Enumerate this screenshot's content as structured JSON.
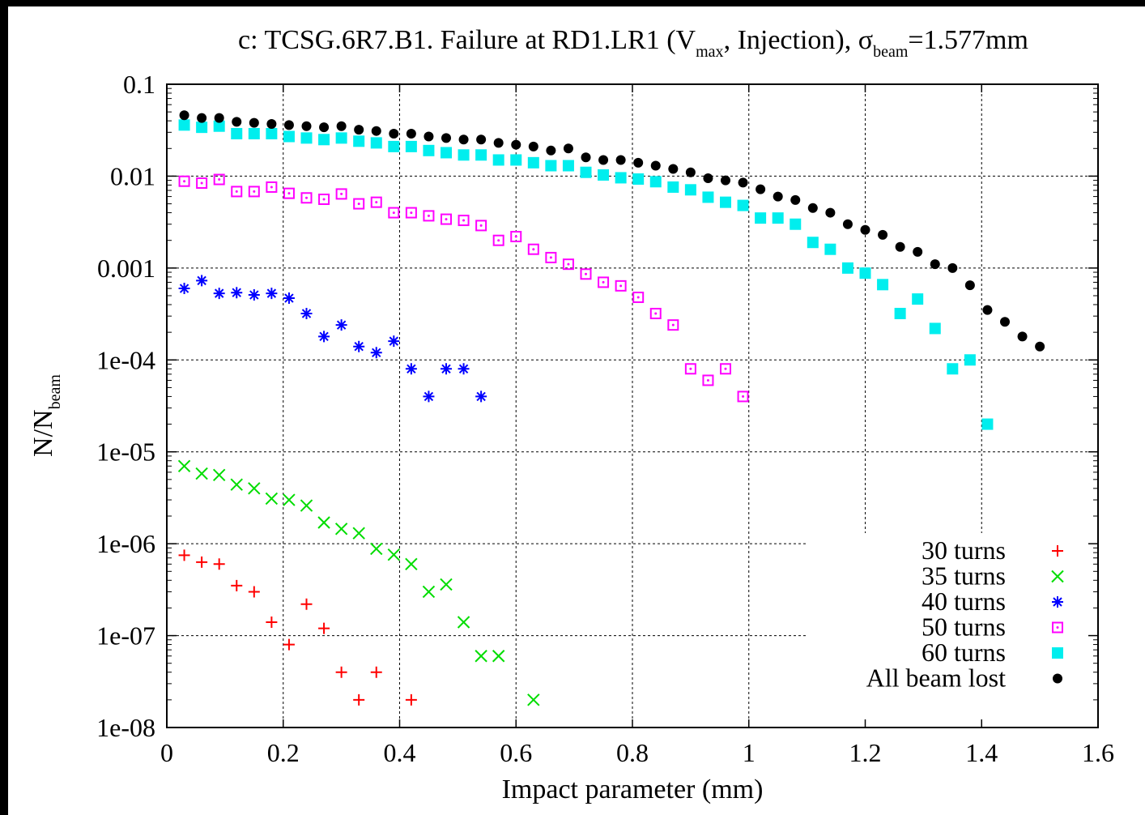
{
  "chart_data": {
    "type": "scatter",
    "title": {
      "prefix": "c: TCSG.6R7.B1. Failure at RD1.LR1 (V",
      "sub1": "max",
      "mid": ", Injection), σ",
      "sub2": "beam",
      "suffix": "=1.577mm"
    },
    "xlabel": "Impact parameter (mm)",
    "ylabel": {
      "main": "N/N",
      "sub": "beam"
    },
    "xlim": [
      0,
      1.6
    ],
    "ylim": [
      1e-08,
      0.1
    ],
    "yscale": "log",
    "grid": true,
    "legend_position": "bottom-right",
    "xticks": [
      {
        "v": 0,
        "label": "0"
      },
      {
        "v": 0.2,
        "label": "0.2"
      },
      {
        "v": 0.4,
        "label": "0.4"
      },
      {
        "v": 0.6,
        "label": "0.6"
      },
      {
        "v": 0.8,
        "label": "0.8"
      },
      {
        "v": 1,
        "label": "1"
      },
      {
        "v": 1.2,
        "label": "1.2"
      },
      {
        "v": 1.4,
        "label": "1.4"
      },
      {
        "v": 1.6,
        "label": "1.6"
      }
    ],
    "yticks": [
      {
        "v": 0.1,
        "label": "0.1"
      },
      {
        "v": 0.01,
        "label": "0.01"
      },
      {
        "v": 0.001,
        "label": "0.001"
      },
      {
        "v": 0.0001,
        "label": "1e-04"
      },
      {
        "v": 1e-05,
        "label": "1e-05"
      },
      {
        "v": 1e-06,
        "label": "1e-06"
      },
      {
        "v": 1e-07,
        "label": "1e-07"
      },
      {
        "v": 1e-08,
        "label": "1e-08"
      }
    ],
    "series": [
      {
        "name": "30 turns",
        "color": "#ff0000",
        "marker": "plus",
        "x": [
          0.03,
          0.06,
          0.09,
          0.12,
          0.15,
          0.18,
          0.21,
          0.24,
          0.27,
          0.3,
          0.33,
          0.36,
          0.42
        ],
        "y": [
          7.5e-07,
          6.3e-07,
          6e-07,
          3.5e-07,
          3e-07,
          1.4e-07,
          8e-08,
          2.2e-07,
          1.2e-07,
          4e-08,
          2e-08,
          4e-08,
          2e-08
        ]
      },
      {
        "name": "35 turns",
        "color": "#00dd00",
        "marker": "cross",
        "x": [
          0.03,
          0.06,
          0.09,
          0.12,
          0.15,
          0.18,
          0.21,
          0.24,
          0.27,
          0.3,
          0.33,
          0.36,
          0.39,
          0.42,
          0.45,
          0.48,
          0.51,
          0.54,
          0.57,
          0.63
        ],
        "y": [
          7e-06,
          5.8e-06,
          5.6e-06,
          4.4e-06,
          4e-06,
          3.1e-06,
          3e-06,
          2.6e-06,
          1.7e-06,
          1.45e-06,
          1.3e-06,
          8.8e-07,
          7.6e-07,
          6e-07,
          3e-07,
          3.6e-07,
          1.4e-07,
          6e-08,
          6e-08,
          2e-08
        ]
      },
      {
        "name": "40 turns",
        "color": "#0000ff",
        "marker": "star",
        "x": [
          0.03,
          0.06,
          0.09,
          0.12,
          0.15,
          0.18,
          0.21,
          0.24,
          0.27,
          0.3,
          0.33,
          0.36,
          0.39,
          0.42,
          0.45,
          0.48,
          0.51,
          0.54
        ],
        "y": [
          0.0006,
          0.00073,
          0.00053,
          0.00054,
          0.00051,
          0.00053,
          0.00047,
          0.00032,
          0.00018,
          0.00024,
          0.00014,
          0.00012,
          0.00016,
          8e-05,
          4e-05,
          8e-05,
          8e-05,
          4e-05
        ]
      },
      {
        "name": "50 turns",
        "color": "#ff00ff",
        "marker": "boxdot",
        "x": [
          0.03,
          0.06,
          0.09,
          0.12,
          0.15,
          0.18,
          0.21,
          0.24,
          0.27,
          0.3,
          0.33,
          0.36,
          0.39,
          0.42,
          0.45,
          0.48,
          0.51,
          0.54,
          0.57,
          0.6,
          0.63,
          0.66,
          0.69,
          0.72,
          0.75,
          0.78,
          0.81,
          0.84,
          0.87,
          0.9,
          0.93,
          0.96,
          0.99
        ],
        "y": [
          0.0088,
          0.0084,
          0.0092,
          0.0068,
          0.0068,
          0.0076,
          0.0065,
          0.0058,
          0.0056,
          0.0064,
          0.005,
          0.0052,
          0.004,
          0.004,
          0.0037,
          0.0034,
          0.0033,
          0.0029,
          0.002,
          0.0022,
          0.0016,
          0.0013,
          0.0011,
          0.00086,
          0.0007,
          0.00064,
          0.00048,
          0.00032,
          0.00024,
          8e-05,
          6e-05,
          8e-05,
          4e-05
        ]
      },
      {
        "name": "60 turns",
        "color": "#00eeee",
        "marker": "filledbox",
        "x": [
          0.03,
          0.06,
          0.09,
          0.12,
          0.15,
          0.18,
          0.21,
          0.24,
          0.27,
          0.3,
          0.33,
          0.36,
          0.39,
          0.42,
          0.45,
          0.48,
          0.51,
          0.54,
          0.57,
          0.6,
          0.63,
          0.66,
          0.69,
          0.72,
          0.75,
          0.78,
          0.81,
          0.84,
          0.87,
          0.9,
          0.93,
          0.96,
          0.99,
          1.02,
          1.05,
          1.08,
          1.11,
          1.14,
          1.17,
          1.2,
          1.23,
          1.26,
          1.29,
          1.32,
          1.35,
          1.38,
          1.41
        ],
        "y": [
          0.036,
          0.034,
          0.035,
          0.029,
          0.029,
          0.029,
          0.027,
          0.026,
          0.025,
          0.026,
          0.024,
          0.023,
          0.021,
          0.021,
          0.019,
          0.018,
          0.017,
          0.017,
          0.015,
          0.015,
          0.014,
          0.013,
          0.013,
          0.011,
          0.0103,
          0.0096,
          0.0093,
          0.0087,
          0.0076,
          0.0071,
          0.0059,
          0.0052,
          0.0048,
          0.0035,
          0.0035,
          0.003,
          0.0019,
          0.0016,
          0.001,
          0.00088,
          0.00066,
          0.00032,
          0.00046,
          0.00022,
          8e-05,
          0.0001,
          2e-05
        ]
      },
      {
        "name": "All beam lost",
        "color": "#000000",
        "marker": "dot",
        "x": [
          0.03,
          0.06,
          0.09,
          0.12,
          0.15,
          0.18,
          0.21,
          0.24,
          0.27,
          0.3,
          0.33,
          0.36,
          0.39,
          0.42,
          0.45,
          0.48,
          0.51,
          0.54,
          0.57,
          0.6,
          0.63,
          0.66,
          0.69,
          0.72,
          0.75,
          0.78,
          0.81,
          0.84,
          0.87,
          0.9,
          0.93,
          0.96,
          0.99,
          1.02,
          1.05,
          1.08,
          1.11,
          1.14,
          1.17,
          1.2,
          1.23,
          1.26,
          1.29,
          1.32,
          1.35,
          1.38,
          1.41,
          1.44,
          1.47,
          1.5
        ],
        "y": [
          0.046,
          0.043,
          0.043,
          0.039,
          0.038,
          0.037,
          0.036,
          0.035,
          0.034,
          0.035,
          0.032,
          0.031,
          0.029,
          0.029,
          0.027,
          0.026,
          0.025,
          0.025,
          0.023,
          0.022,
          0.021,
          0.019,
          0.02,
          0.016,
          0.015,
          0.015,
          0.014,
          0.013,
          0.012,
          0.011,
          0.0095,
          0.009,
          0.0085,
          0.0072,
          0.006,
          0.0055,
          0.0045,
          0.004,
          0.003,
          0.0026,
          0.0023,
          0.0017,
          0.0015,
          0.0011,
          0.001,
          0.00065,
          0.00035,
          0.00026,
          0.00018,
          0.00014
        ]
      }
    ]
  }
}
